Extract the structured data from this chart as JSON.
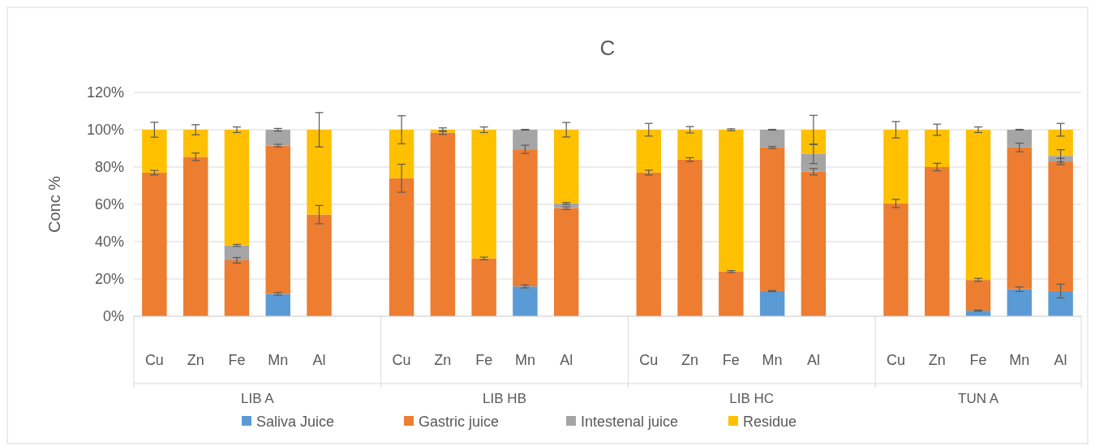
{
  "chart_data": {
    "type": "bar",
    "title": "C",
    "ylabel": "Conc %",
    "stacked": true,
    "grid": "y",
    "legend": "bottom",
    "categories": [
      "Cu",
      "Zn",
      "Fe",
      "Mn",
      "Al",
      null,
      "Cu",
      "Zn",
      "Fe",
      "Mn",
      "Al",
      null,
      "Cu",
      "Zn",
      "Fe",
      "Mn",
      "Al",
      null,
      "Cu",
      "Zn",
      "Fe",
      "Mn",
      "Al"
    ],
    "annotations": [
      "LIB A",
      "LIB HB",
      "LIB HC",
      "TUN A"
    ],
    "ylim": [
      0,
      120
    ],
    "yticks": [
      {
        "value": 0,
        "label": "0%"
      },
      {
        "value": 20,
        "label": "20%"
      },
      {
        "value": 40,
        "label": "40%"
      },
      {
        "value": 60,
        "label": "60%"
      },
      {
        "value": 80,
        "label": "80%"
      },
      {
        "value": 100,
        "label": "100%"
      },
      {
        "value": 120,
        "label": "120%"
      }
    ],
    "series": [
      {
        "name": "Saliva Juice",
        "color": "#5b9bd5",
        "values": [
          0,
          0,
          0,
          12,
          0,
          null,
          0,
          0,
          0,
          16,
          0,
          null,
          0,
          0,
          0,
          13.5,
          0,
          null,
          0,
          0,
          3,
          14.5,
          13.5
        ],
        "errors": [
          null,
          null,
          null,
          0.7,
          null,
          null,
          null,
          null,
          null,
          0.8,
          null,
          null,
          null,
          null,
          null,
          0.3,
          null,
          null,
          null,
          null,
          0.3,
          1.2,
          3.7
        ]
      },
      {
        "name": "Gastric juice",
        "color": "#ed7d31",
        "values": [
          77,
          85.5,
          30,
          79.5,
          54.5,
          null,
          74,
          98.5,
          31,
          73.5,
          58,
          null,
          77,
          84,
          24,
          77,
          77.5,
          null,
          60.5,
          80,
          16.5,
          76,
          69.5
        ],
        "errors": [
          1.2,
          2,
          1.5,
          0.7,
          4.9,
          null,
          7.5,
          1,
          0.7,
          2.2,
          0.7,
          null,
          1.3,
          1,
          0.5,
          0.5,
          1.7,
          null,
          2.2,
          2,
          0.8,
          2.3,
          1.7
        ]
      },
      {
        "name": "Intestenal juice",
        "color": "#a5a5a5",
        "values": [
          0,
          0,
          8,
          8.5,
          0,
          null,
          0,
          0,
          0,
          10.5,
          2.5,
          null,
          0,
          0,
          0,
          9.5,
          9.5,
          null,
          0,
          0,
          0,
          9.5,
          3
        ],
        "errors": [
          null,
          null,
          0.5,
          0.7,
          null,
          null,
          null,
          null,
          null,
          0.2,
          0.5,
          null,
          null,
          null,
          null,
          0.2,
          5.1,
          null,
          null,
          null,
          null,
          0.2,
          3.3
        ]
      },
      {
        "name": "Residue",
        "color": "#ffc000",
        "values": [
          23,
          14.5,
          62,
          0,
          45.5,
          null,
          26,
          1.5,
          69,
          0,
          39.5,
          null,
          23,
          16,
          76,
          0,
          13,
          null,
          39.5,
          20,
          80.5,
          0,
          14
        ],
        "errors": [
          4,
          2.7,
          1.5,
          null,
          9.2,
          null,
          7.5,
          1,
          1.5,
          null,
          3.9,
          null,
          3.4,
          1.7,
          0.5,
          null,
          7.7,
          null,
          4.4,
          3,
          1.5,
          null,
          3.4
        ]
      }
    ]
  }
}
